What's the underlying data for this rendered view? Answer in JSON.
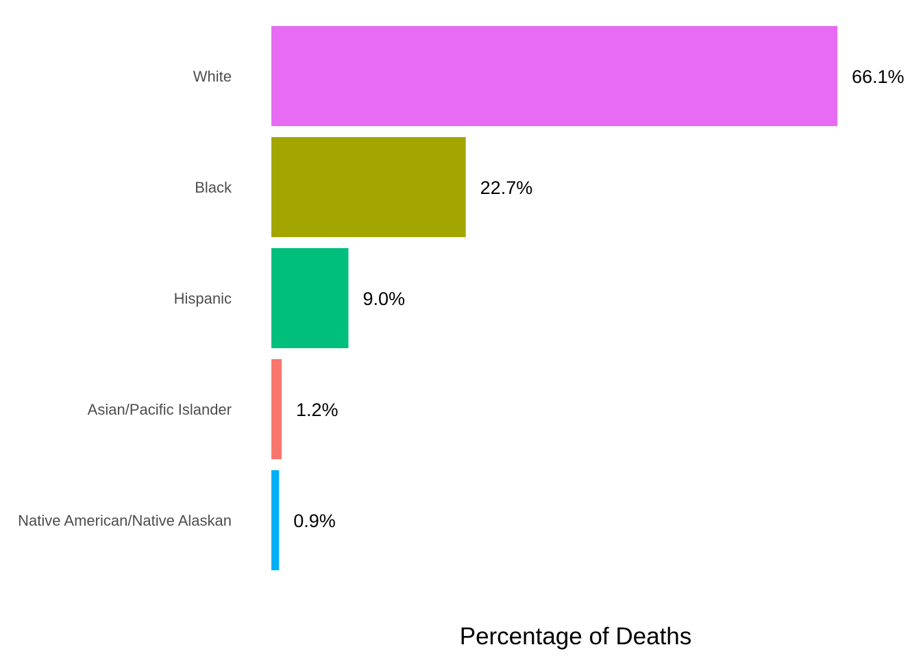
{
  "chart_data": {
    "type": "bar",
    "orientation": "horizontal",
    "title": "",
    "xlabel": "Percentage of Deaths",
    "ylabel": "",
    "categories": [
      "White",
      "Black",
      "Hispanic",
      "Asian/Pacific Islander",
      "Native American/Native Alaskan"
    ],
    "values": [
      66.1,
      22.7,
      9.0,
      1.2,
      0.9
    ],
    "value_labels": [
      "66.1%",
      "22.7%",
      "9.0%",
      "1.2%",
      "0.9%"
    ],
    "colors": [
      "#E76BF3",
      "#A3A500",
      "#00BF7D",
      "#F8766D",
      "#00B0F6"
    ],
    "xlim": [
      0,
      66.1
    ],
    "grid": false,
    "legend": "none"
  }
}
